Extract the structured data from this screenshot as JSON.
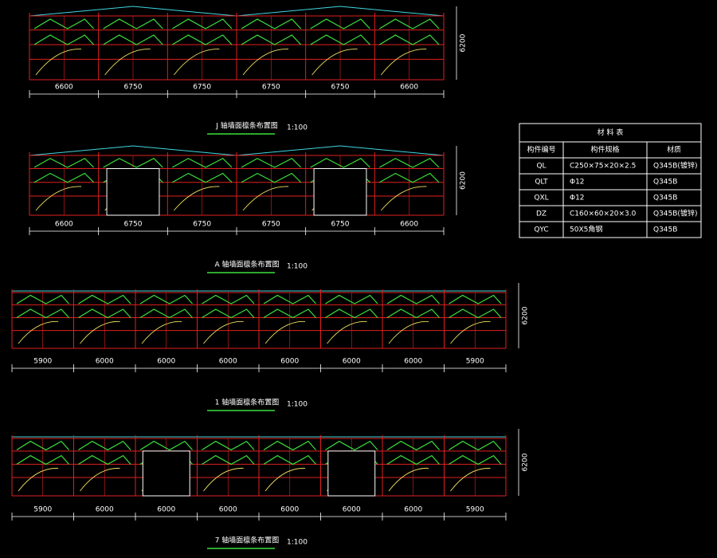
{
  "elevations": [
    {
      "title": "J 轴墙面檩条布置图",
      "scale": "1:100",
      "height": "6200",
      "spans": [
        "6600",
        "6750",
        "6750",
        "6750",
        "6750",
        "6600"
      ]
    },
    {
      "title": "A 轴墙面檩条布置图",
      "scale": "1:100",
      "height": "6200",
      "spans": [
        "6600",
        "6750",
        "6750",
        "6750",
        "6750",
        "6600"
      ]
    },
    {
      "title": "1 轴墙面檩条布置图",
      "scale": "1:100",
      "height": "6200",
      "spans": [
        "5900",
        "6000",
        "6000",
        "6000",
        "6000",
        "6000",
        "6000",
        "5900"
      ]
    },
    {
      "title": "7 轴墙面檩条布置图",
      "scale": "1:100",
      "height": "6200",
      "spans": [
        "5900",
        "6000",
        "6000",
        "6000",
        "6000",
        "6000",
        "6000",
        "5900"
      ]
    }
  ],
  "table": {
    "title": "材 料 表",
    "headers": [
      "构件编号",
      "构件规格",
      "材质"
    ],
    "rows": [
      [
        "QL",
        "C250×75×20×2.5",
        "Q345B(镀锌)"
      ],
      [
        "QLT",
        "Φ12",
        "Q345B"
      ],
      [
        "QXL",
        "Φ12",
        "Q345B"
      ],
      [
        "DZ",
        "C160×60×20×3.0",
        "Q345B(镀锌)"
      ],
      [
        "QYC",
        "50X5角钢",
        "Q345B"
      ]
    ]
  }
}
